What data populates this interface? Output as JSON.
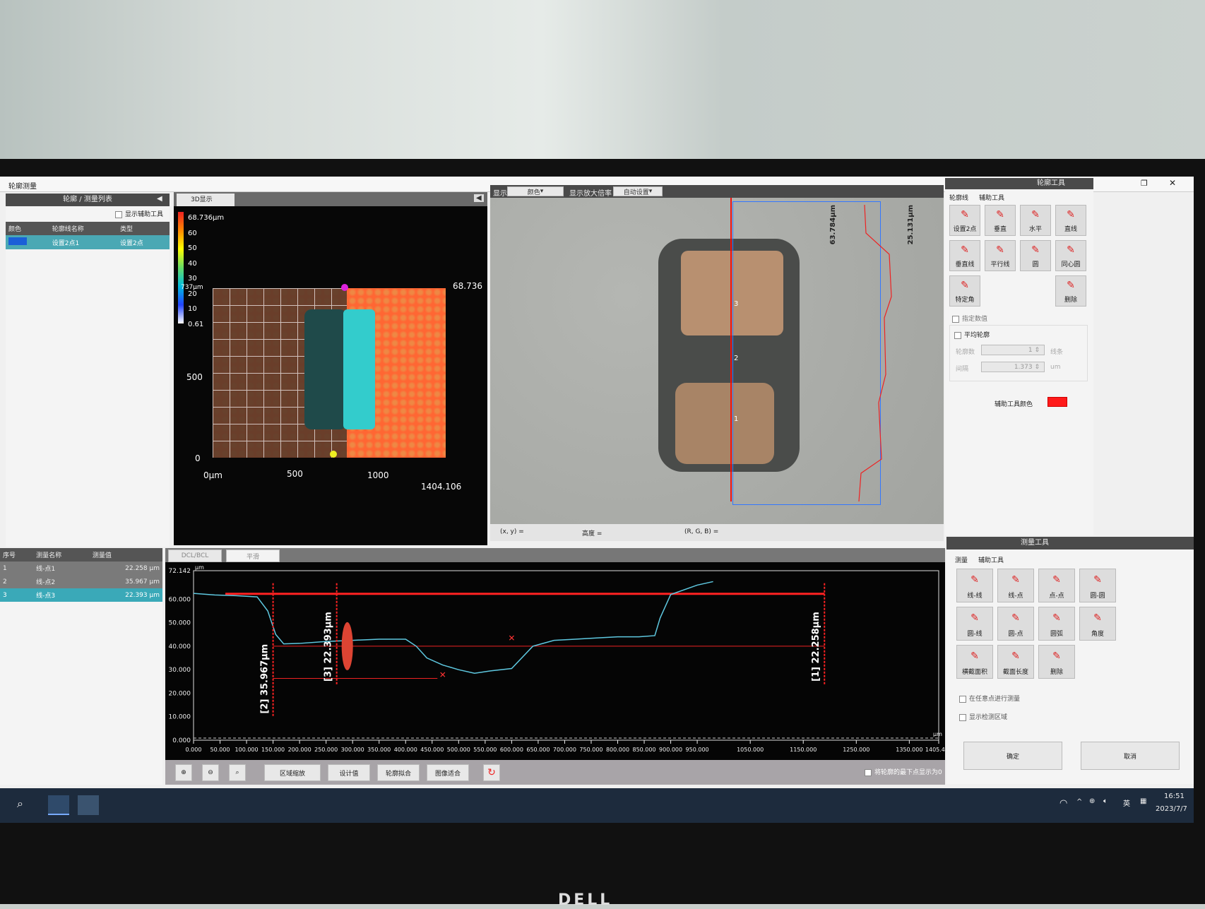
{
  "window": {
    "title": "轮廓测量"
  },
  "left_panel": {
    "header": "轮廓 / 测量列表",
    "show_aux_tools_label": "显示辅助工具",
    "columns": [
      "颜色",
      "轮廓线名称",
      "类型"
    ],
    "rows": [
      {
        "color": "#1a5fd8",
        "name": "设置2点1",
        "type": "设置2点"
      }
    ]
  },
  "view3d": {
    "tab_label": "3D显示",
    "colorbar_ticks": [
      "68.736μm",
      "60",
      "50",
      "40",
      "30",
      "20",
      "10",
      "0.61"
    ],
    "x_ticks": [
      "0μm",
      "500",
      "1000"
    ],
    "x_max_label": "1404.106",
    "y_ticks": [
      "737μm",
      "500",
      "0"
    ],
    "corner_label": "68.736"
  },
  "image_view": {
    "display_label": "显示",
    "display_value": "颜色",
    "zoom_label": "显示放大倍率",
    "zoom_value": "自动设置",
    "height_labels": [
      "63.784μm",
      "25.131μm"
    ],
    "markers": [
      "3",
      "2",
      "1"
    ],
    "status": {
      "xy": "(x, y) =",
      "height": "高度 =",
      "rgb": "(R, G, B) ="
    }
  },
  "contour_tools": {
    "title": "轮廓工具",
    "tabs": [
      "轮廓线",
      "辅助工具"
    ],
    "buttons": [
      "设置2点",
      "垂直",
      "水平",
      "直线",
      "垂直线",
      "平行线",
      "圆",
      "同心圆",
      "特定角",
      "删除"
    ],
    "specify_value_label": "指定数值",
    "average_profile_label": "平均轮廓",
    "profile_count_label": "轮廓数",
    "profile_count_value": "1",
    "profile_count_unit": "线条",
    "interval_label": "间隔",
    "interval_value": "1.373",
    "interval_unit": "um",
    "aux_color_label": "辅助工具颜色",
    "aux_color": "#ff1a1a"
  },
  "measure_list": {
    "columns": [
      "序号",
      "测量名称",
      "测量值"
    ],
    "rows": [
      {
        "id": "1",
        "name": "线-点1",
        "value": "22.258",
        "unit": "μm"
      },
      {
        "id": "2",
        "name": "线-点2",
        "value": "35.967",
        "unit": "μm"
      },
      {
        "id": "3",
        "name": "线-点3",
        "value": "22.393",
        "unit": "μm"
      }
    ]
  },
  "profile": {
    "tabs": [
      "DCL/BCL",
      "平滑"
    ],
    "y_unit": "μm",
    "x_unit": "μm",
    "y_ticks": [
      "72.142",
      "60.000",
      "50.000",
      "40.000",
      "30.000",
      "20.000",
      "10.000",
      "0.000"
    ],
    "x_ticks": [
      "0.000",
      "50.000",
      "100.000",
      "150.000",
      "200.000",
      "250.000",
      "300.000",
      "350.000",
      "400.000",
      "450.000",
      "500.000",
      "550.000",
      "600.000",
      "650.000",
      "700.000",
      "750.000",
      "800.000",
      "850.000",
      "900.000",
      "950.000",
      "1050.000",
      "1150.000",
      "1250.000",
      "1350.000",
      "1405.479"
    ],
    "chart_data": {
      "type": "line",
      "xlim": [
        0,
        1405.479
      ],
      "ylim": [
        0,
        72.142
      ],
      "series": [
        {
          "color": "#5ec8e0",
          "x": [
            0,
            40,
            80,
            120,
            140,
            155,
            170,
            200,
            250,
            300,
            350,
            400,
            420,
            440,
            470,
            500,
            530,
            560,
            600,
            640,
            680,
            720,
            760,
            800,
            840,
            870,
            880,
            900,
            950,
            980
          ],
          "y": [
            62.5,
            61.8,
            61.5,
            61,
            55,
            45,
            41,
            41.2,
            42,
            42.5,
            43,
            43,
            40,
            35,
            32,
            30,
            28.5,
            29.5,
            30.5,
            40,
            42.5,
            43,
            43.5,
            44,
            44,
            44.5,
            52,
            62,
            66,
            67.5
          ]
        }
      ],
      "annotations": [
        {
          "label": "[1] 22.258μm",
          "value": 22.258
        },
        {
          "label": "[2] 35.967μm",
          "value": 35.967
        },
        {
          "label": "[3] 22.393μm",
          "value": 22.393
        }
      ],
      "reference_levels": [
        62.3,
        40.0,
        26.3
      ]
    },
    "toolbar": [
      "区域缩放",
      "设计值",
      "轮廓拟合",
      "图像适合"
    ],
    "zero_checkbox_label": "将轮廓的最下点显示为0"
  },
  "measure_tools": {
    "title": "测量工具",
    "tabs": [
      "测量",
      "辅助工具"
    ],
    "buttons": [
      "线-线",
      "线-点",
      "点-点",
      "圆-圆",
      "圆-线",
      "圆-点",
      "圆弧",
      "角度",
      "横截面积",
      "截面长度",
      "删除"
    ],
    "any_point_label": "在任意点进行测量",
    "show_region_label": "显示检测区域",
    "ok_label": "确定",
    "cancel_label": "取消"
  },
  "taskbar": {
    "ime": "英",
    "time": "16:51",
    "date": "2023/7/7"
  },
  "monitor_brand": "DELL"
}
